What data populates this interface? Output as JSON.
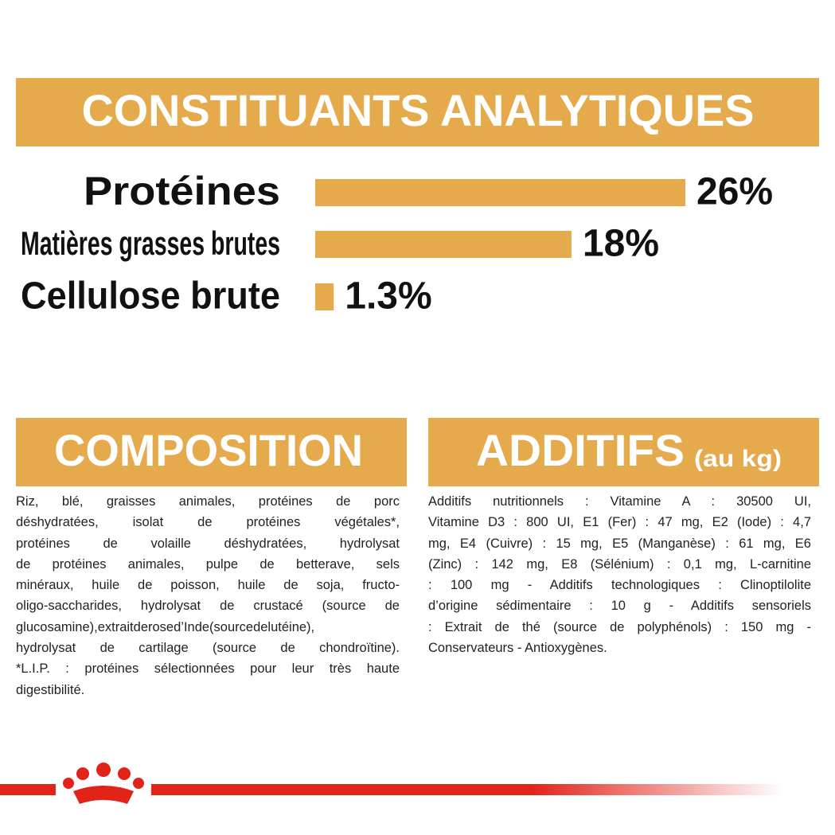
{
  "chart_data": {
    "type": "bar",
    "title": "CONSTITUANTS ANALYTIQUES",
    "categories": [
      "Protéines",
      "Matières grasses brutes",
      "Cellulose brute"
    ],
    "values": [
      26,
      18,
      1.3
    ],
    "value_labels": [
      "26%",
      "18%",
      "1.3%"
    ],
    "color": "#e5aa4b"
  },
  "composition": {
    "title": "COMPOSITION",
    "lines": [
      "Riz, blé, graisses animales, protéines de porc",
      "déshydratées, isolat de protéines végétales*,",
      "protéines de volaille déshydratées, hydrolysat",
      "de protéines animales, pulpe de betterave, sels",
      "minéraux, huile de poisson, huile de soja, fructo-",
      "oligo-saccharides, hydrolysat de crustacé (source de",
      "glucosamine),extraitderosed’Inde(sourcedelutéine),",
      "hydrolysat de cartilage (source de chondroïtine).",
      "*L.I.P. : protéines sélectionnées pour leur très haute",
      "digestibilité."
    ]
  },
  "additifs": {
    "title": "ADDITIFS",
    "subtitle": "(au kg)",
    "lines": [
      "Additifs nutritionnels : Vitamine A : 30500 UI,",
      "Vitamine D3 : 800 UI, E1 (Fer) : 47 mg, E2 (Iode) : 4,7",
      "mg, E4 (Cuivre) : 15 mg, E5 (Manganèse) : 61 mg, E6",
      "(Zinc) : 142 mg, E8 (Sélénium) : 0,1 mg, L-carnitine",
      ": 100 mg - Additifs technologiques : Clinoptilolite",
      "d’origine sédimentaire : 10 g - Additifs sensoriels",
      ": Extrait de thé (source de polyphénols) : 150 mg -",
      "Conservateurs - Antioxygènes."
    ]
  }
}
